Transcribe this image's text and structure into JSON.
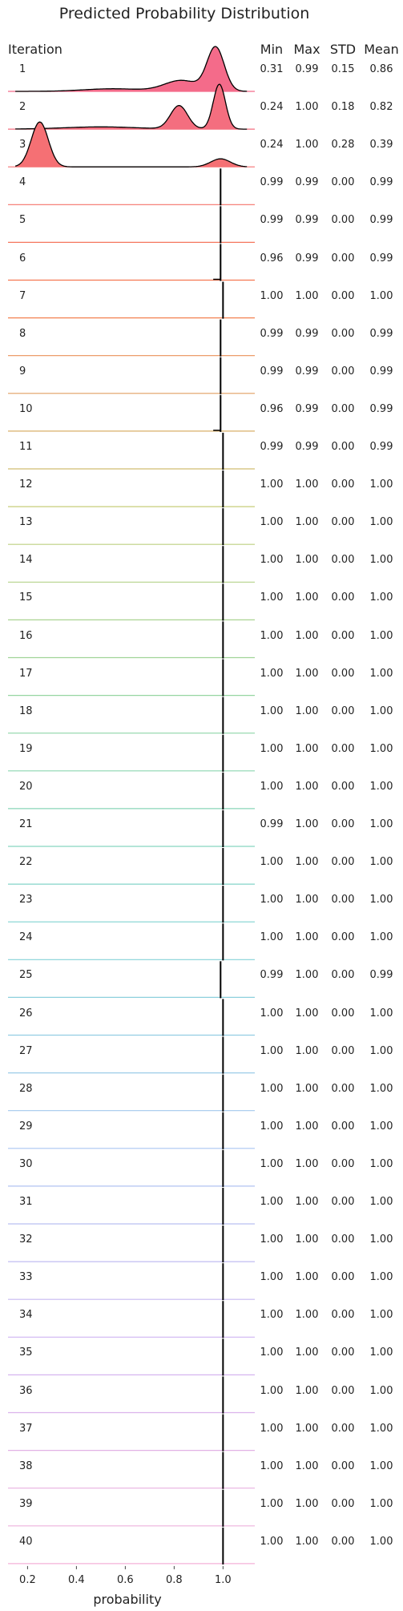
{
  "chart_data": {
    "type": "ridgeline",
    "title": "Predicted Probability Distribution",
    "row_header": "Iteration",
    "stat_headers": [
      "Min",
      "Max",
      "STD",
      "Mean"
    ],
    "xlabel": "probability",
    "xlim": [
      0.12,
      1.13
    ],
    "xticks": [
      0.2,
      0.4,
      0.6,
      0.8,
      1.0
    ],
    "xtick_labels": [
      "0.2",
      "0.4",
      "0.6",
      "0.8",
      "1.0"
    ],
    "grid": false,
    "palette": {
      "start": "#f46b8a",
      "orange": "#f67a4c",
      "yellow": "#c6d07a",
      "green": "#8fd6a6",
      "teal": "#7fd4d4",
      "blue": "#a9c6f2",
      "purple": "#d2b4f2",
      "pink": "#f4b0d8"
    },
    "iterations": [
      {
        "label": "1",
        "min": "0.31",
        "max": "0.99",
        "std": "0.15",
        "mean": "0.86"
      },
      {
        "label": "2",
        "min": "0.24",
        "max": "1.00",
        "std": "0.18",
        "mean": "0.82"
      },
      {
        "label": "3",
        "min": "0.24",
        "max": "1.00",
        "std": "0.28",
        "mean": "0.39"
      },
      {
        "label": "4",
        "min": "0.99",
        "max": "0.99",
        "std": "0.00",
        "mean": "0.99"
      },
      {
        "label": "5",
        "min": "0.99",
        "max": "0.99",
        "std": "0.00",
        "mean": "0.99"
      },
      {
        "label": "6",
        "min": "0.96",
        "max": "0.99",
        "std": "0.00",
        "mean": "0.99"
      },
      {
        "label": "7",
        "min": "1.00",
        "max": "1.00",
        "std": "0.00",
        "mean": "1.00"
      },
      {
        "label": "8",
        "min": "0.99",
        "max": "0.99",
        "std": "0.00",
        "mean": "0.99"
      },
      {
        "label": "9",
        "min": "0.99",
        "max": "0.99",
        "std": "0.00",
        "mean": "0.99"
      },
      {
        "label": "10",
        "min": "0.96",
        "max": "0.99",
        "std": "0.00",
        "mean": "0.99"
      },
      {
        "label": "11",
        "min": "0.99",
        "max": "0.99",
        "std": "0.00",
        "mean": "0.99"
      },
      {
        "label": "12",
        "min": "1.00",
        "max": "1.00",
        "std": "0.00",
        "mean": "1.00"
      },
      {
        "label": "13",
        "min": "1.00",
        "max": "1.00",
        "std": "0.00",
        "mean": "1.00"
      },
      {
        "label": "14",
        "min": "1.00",
        "max": "1.00",
        "std": "0.00",
        "mean": "1.00"
      },
      {
        "label": "15",
        "min": "1.00",
        "max": "1.00",
        "std": "0.00",
        "mean": "1.00"
      },
      {
        "label": "16",
        "min": "1.00",
        "max": "1.00",
        "std": "0.00",
        "mean": "1.00"
      },
      {
        "label": "17",
        "min": "1.00",
        "max": "1.00",
        "std": "0.00",
        "mean": "1.00"
      },
      {
        "label": "18",
        "min": "1.00",
        "max": "1.00",
        "std": "0.00",
        "mean": "1.00"
      },
      {
        "label": "19",
        "min": "1.00",
        "max": "1.00",
        "std": "0.00",
        "mean": "1.00"
      },
      {
        "label": "20",
        "min": "1.00",
        "max": "1.00",
        "std": "0.00",
        "mean": "1.00"
      },
      {
        "label": "21",
        "min": "0.99",
        "max": "1.00",
        "std": "0.00",
        "mean": "1.00"
      },
      {
        "label": "22",
        "min": "1.00",
        "max": "1.00",
        "std": "0.00",
        "mean": "1.00"
      },
      {
        "label": "23",
        "min": "1.00",
        "max": "1.00",
        "std": "0.00",
        "mean": "1.00"
      },
      {
        "label": "24",
        "min": "1.00",
        "max": "1.00",
        "std": "0.00",
        "mean": "1.00"
      },
      {
        "label": "25",
        "min": "0.99",
        "max": "1.00",
        "std": "0.00",
        "mean": "0.99"
      },
      {
        "label": "26",
        "min": "1.00",
        "max": "1.00",
        "std": "0.00",
        "mean": "1.00"
      },
      {
        "label": "27",
        "min": "1.00",
        "max": "1.00",
        "std": "0.00",
        "mean": "1.00"
      },
      {
        "label": "28",
        "min": "1.00",
        "max": "1.00",
        "std": "0.00",
        "mean": "1.00"
      },
      {
        "label": "29",
        "min": "1.00",
        "max": "1.00",
        "std": "0.00",
        "mean": "1.00"
      },
      {
        "label": "30",
        "min": "1.00",
        "max": "1.00",
        "std": "0.00",
        "mean": "1.00"
      },
      {
        "label": "31",
        "min": "1.00",
        "max": "1.00",
        "std": "0.00",
        "mean": "1.00"
      },
      {
        "label": "32",
        "min": "1.00",
        "max": "1.00",
        "std": "0.00",
        "mean": "1.00"
      },
      {
        "label": "33",
        "min": "1.00",
        "max": "1.00",
        "std": "0.00",
        "mean": "1.00"
      },
      {
        "label": "34",
        "min": "1.00",
        "max": "1.00",
        "std": "0.00",
        "mean": "1.00"
      },
      {
        "label": "35",
        "min": "1.00",
        "max": "1.00",
        "std": "0.00",
        "mean": "1.00"
      },
      {
        "label": "36",
        "min": "1.00",
        "max": "1.00",
        "std": "0.00",
        "mean": "1.00"
      },
      {
        "label": "37",
        "min": "1.00",
        "max": "1.00",
        "std": "0.00",
        "mean": "1.00"
      },
      {
        "label": "38",
        "min": "1.00",
        "max": "1.00",
        "std": "0.00",
        "mean": "1.00"
      },
      {
        "label": "39",
        "min": "1.00",
        "max": "1.00",
        "std": "0.00",
        "mean": "1.00"
      },
      {
        "label": "40",
        "min": "1.00",
        "max": "1.00",
        "std": "0.00",
        "mean": "1.00"
      }
    ],
    "density_components": [
      [
        {
          "mu": 0.97,
          "sigma": 0.035,
          "w": 1.0
        },
        {
          "mu": 0.83,
          "sigma": 0.07,
          "w": 0.25
        },
        {
          "mu": 0.55,
          "sigma": 0.12,
          "w": 0.06
        }
      ],
      [
        {
          "mu": 0.985,
          "sigma": 0.025,
          "w": 1.0
        },
        {
          "mu": 0.82,
          "sigma": 0.035,
          "w": 0.52
        },
        {
          "mu": 0.5,
          "sigma": 0.15,
          "w": 0.05
        }
      ],
      [
        {
          "mu": 0.25,
          "sigma": 0.035,
          "w": 1.0
        },
        {
          "mu": 0.99,
          "sigma": 0.04,
          "w": 0.18
        }
      ]
    ],
    "spike_centers": [
      0.99,
      0.99,
      0.99,
      1.0,
      0.99,
      0.99,
      0.99,
      1.0,
      1.0,
      1.0,
      1.0,
      1.0,
      1.0,
      1.0,
      1.0,
      1.0,
      1.0,
      1.0,
      1.0,
      1.0,
      1.0,
      0.99,
      1.0,
      1.0,
      1.0,
      1.0,
      1.0,
      1.0,
      1.0,
      1.0,
      1.0,
      1.0,
      1.0,
      1.0,
      1.0,
      1.0,
      1.0
    ],
    "spike_tails": [
      "",
      "",
      "0.96",
      "",
      "",
      "",
      "0.96",
      "",
      "",
      "",
      "",
      "",
      "",
      "",
      "",
      "",
      "",
      "",
      "",
      "",
      "",
      "",
      "",
      "",
      "",
      "",
      "",
      "",
      "",
      "",
      "",
      "",
      "",
      "",
      "",
      "",
      ""
    ]
  }
}
